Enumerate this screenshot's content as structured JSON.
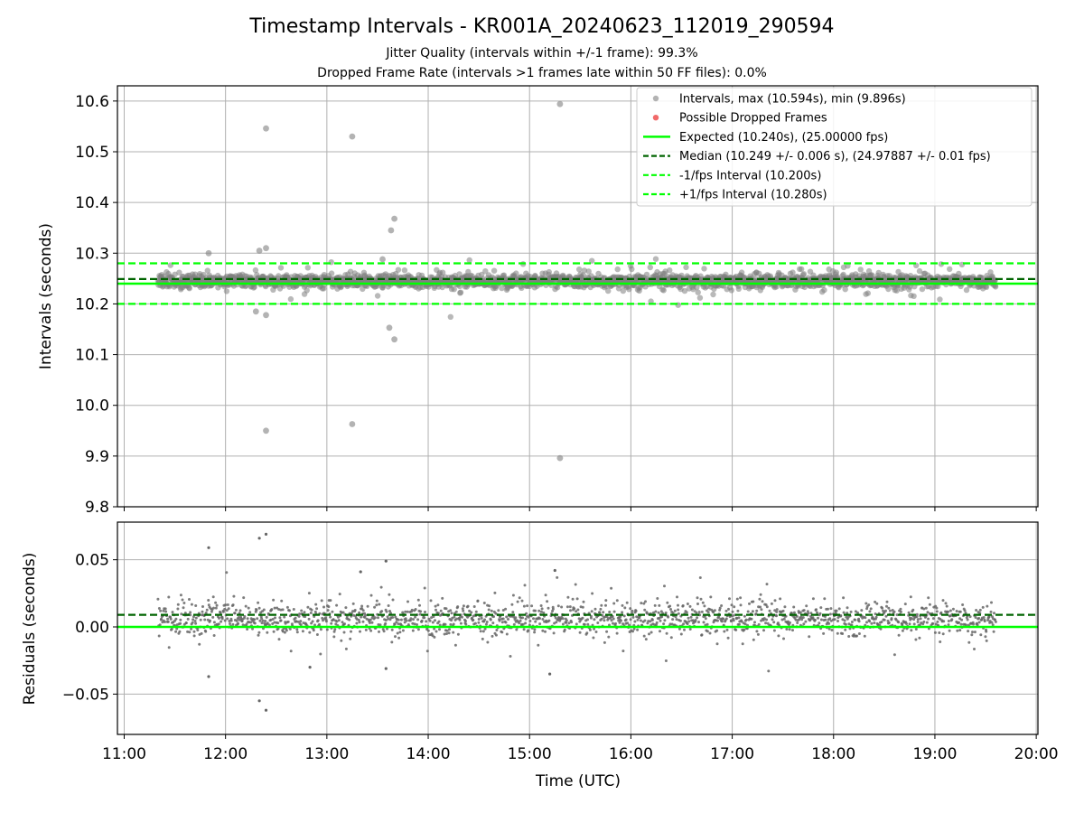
{
  "figure": {
    "title": "Timestamp Intervals - KR001A_20240623_112019_290594",
    "subtitle_1": "Jitter Quality (intervals within +/-1 frame): 99.3%",
    "subtitle_2": "Dropped Frame Rate (intervals >1 frames late within 50 FF files): 0.0%"
  },
  "colors": {
    "points": "#808080",
    "dropped": "#f05a5a",
    "expected": "#00ff00",
    "median": "#006400",
    "bounds": "#00ff00",
    "grid": "#b0b0b0"
  },
  "chart_data": [
    {
      "type": "scatter",
      "panel": "top",
      "ylabel": "Intervals (seconds)",
      "ylim": [
        9.8,
        10.63
      ],
      "yticks": [
        "9.8",
        "9.9",
        "10.0",
        "10.1",
        "10.2",
        "10.3",
        "10.4",
        "10.5",
        "10.6"
      ],
      "grid": true,
      "legend_position": "top-right",
      "series": [
        {
          "name": "Intervals, max (10.594s), min (9.896s)",
          "kind": "scatter-band",
          "x_range": [
            "11:20",
            "19:36"
          ],
          "center": 10.245,
          "spread": 0.012
        },
        {
          "name": "Possible Dropped Frames",
          "kind": "scatter",
          "points": []
        },
        {
          "name": "Expected (10.240s), (25.00000 fps)",
          "kind": "hline",
          "y": 10.24
        },
        {
          "name": "Median (10.249 +/- 0.006 s), (24.97887 +/- 0.01 fps)",
          "kind": "hline-dashed",
          "y": 10.249
        },
        {
          "name": "-1/fps Interval (10.200s)",
          "kind": "hline-dashed",
          "y": 10.2
        },
        {
          "name": "+1/fps Interval (10.280s)",
          "kind": "hline-dashed",
          "y": 10.28
        }
      ],
      "outliers": [
        {
          "x": "12:24",
          "y": 10.546
        },
        {
          "x": "13:15",
          "y": 10.53
        },
        {
          "x": "15:18",
          "y": 10.594
        },
        {
          "x": "13:40",
          "y": 10.368
        },
        {
          "x": "13:38",
          "y": 10.345
        },
        {
          "x": "12:24",
          "y": 10.31
        },
        {
          "x": "12:20",
          "y": 10.305
        },
        {
          "x": "11:50",
          "y": 10.3
        },
        {
          "x": "13:33",
          "y": 10.288
        },
        {
          "x": "12:18",
          "y": 10.185
        },
        {
          "x": "12:24",
          "y": 10.178
        },
        {
          "x": "13:37",
          "y": 10.153
        },
        {
          "x": "13:40",
          "y": 10.13
        },
        {
          "x": "12:24",
          "y": 9.95
        },
        {
          "x": "13:15",
          "y": 9.963
        },
        {
          "x": "15:18",
          "y": 9.896
        }
      ]
    },
    {
      "type": "scatter",
      "panel": "bottom",
      "xlabel": "Time (UTC)",
      "ylabel": "Residuals (seconds)",
      "ylim": [
        -0.08,
        0.078
      ],
      "xlim": [
        "10:56",
        "20:01"
      ],
      "xticks": [
        "11:00",
        "12:00",
        "13:00",
        "14:00",
        "15:00",
        "16:00",
        "17:00",
        "18:00",
        "19:00",
        "20:00"
      ],
      "yticks": [
        "−0.05",
        "0.00",
        "0.05"
      ],
      "ytick_values": [
        -0.05,
        0.0,
        0.05
      ],
      "grid": true,
      "series": [
        {
          "name": "",
          "kind": "hline",
          "y": 0.0
        },
        {
          "name": "",
          "kind": "hline-dashed",
          "y": 0.009
        }
      ],
      "outliers": [
        {
          "x": "11:50",
          "y": 0.059
        },
        {
          "x": "12:20",
          "y": 0.066
        },
        {
          "x": "12:24",
          "y": 0.069
        },
        {
          "x": "13:35",
          "y": 0.049
        },
        {
          "x": "13:20",
          "y": 0.041
        },
        {
          "x": "15:15",
          "y": 0.042
        },
        {
          "x": "12:20",
          "y": -0.055
        },
        {
          "x": "12:24",
          "y": -0.062
        },
        {
          "x": "11:50",
          "y": -0.037
        },
        {
          "x": "13:35",
          "y": -0.031
        },
        {
          "x": "15:12",
          "y": -0.035
        },
        {
          "x": "12:50",
          "y": -0.03
        }
      ]
    }
  ]
}
